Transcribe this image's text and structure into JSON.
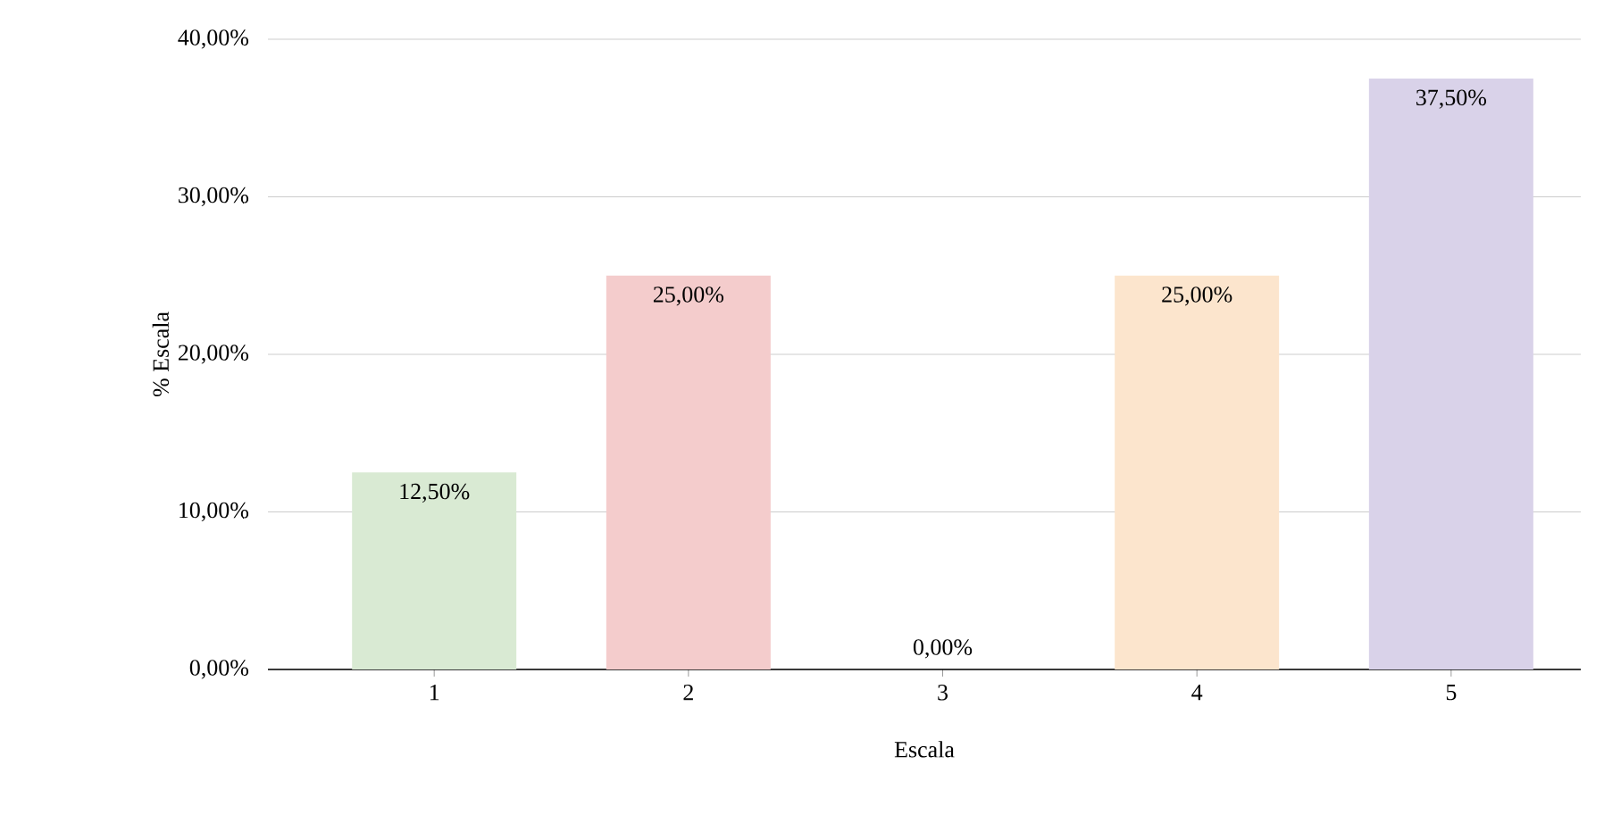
{
  "chart_data": {
    "type": "bar",
    "xlabel": "Escala",
    "ylabel": "% Escala",
    "categories": [
      "1",
      "2",
      "3",
      "4",
      "5"
    ],
    "values": [
      12.5,
      25,
      0,
      25,
      37.5
    ],
    "value_labels": [
      "12,50%",
      "25,00%",
      "0,00%",
      "25,00%",
      "37,50%"
    ],
    "colors": [
      "#d9ead3",
      "#f4cccc",
      "#cfe2f3",
      "#fce5cd",
      "#d9d2e9"
    ],
    "ylim": [
      0,
      40
    ],
    "yticks": [
      {
        "value": 0,
        "label": "0,00%"
      },
      {
        "value": 10,
        "label": "10,00%"
      },
      {
        "value": 20,
        "label": "20,00%"
      },
      {
        "value": 30,
        "label": "30,00%"
      },
      {
        "value": 40,
        "label": "40,00%"
      }
    ],
    "grid": "y"
  }
}
